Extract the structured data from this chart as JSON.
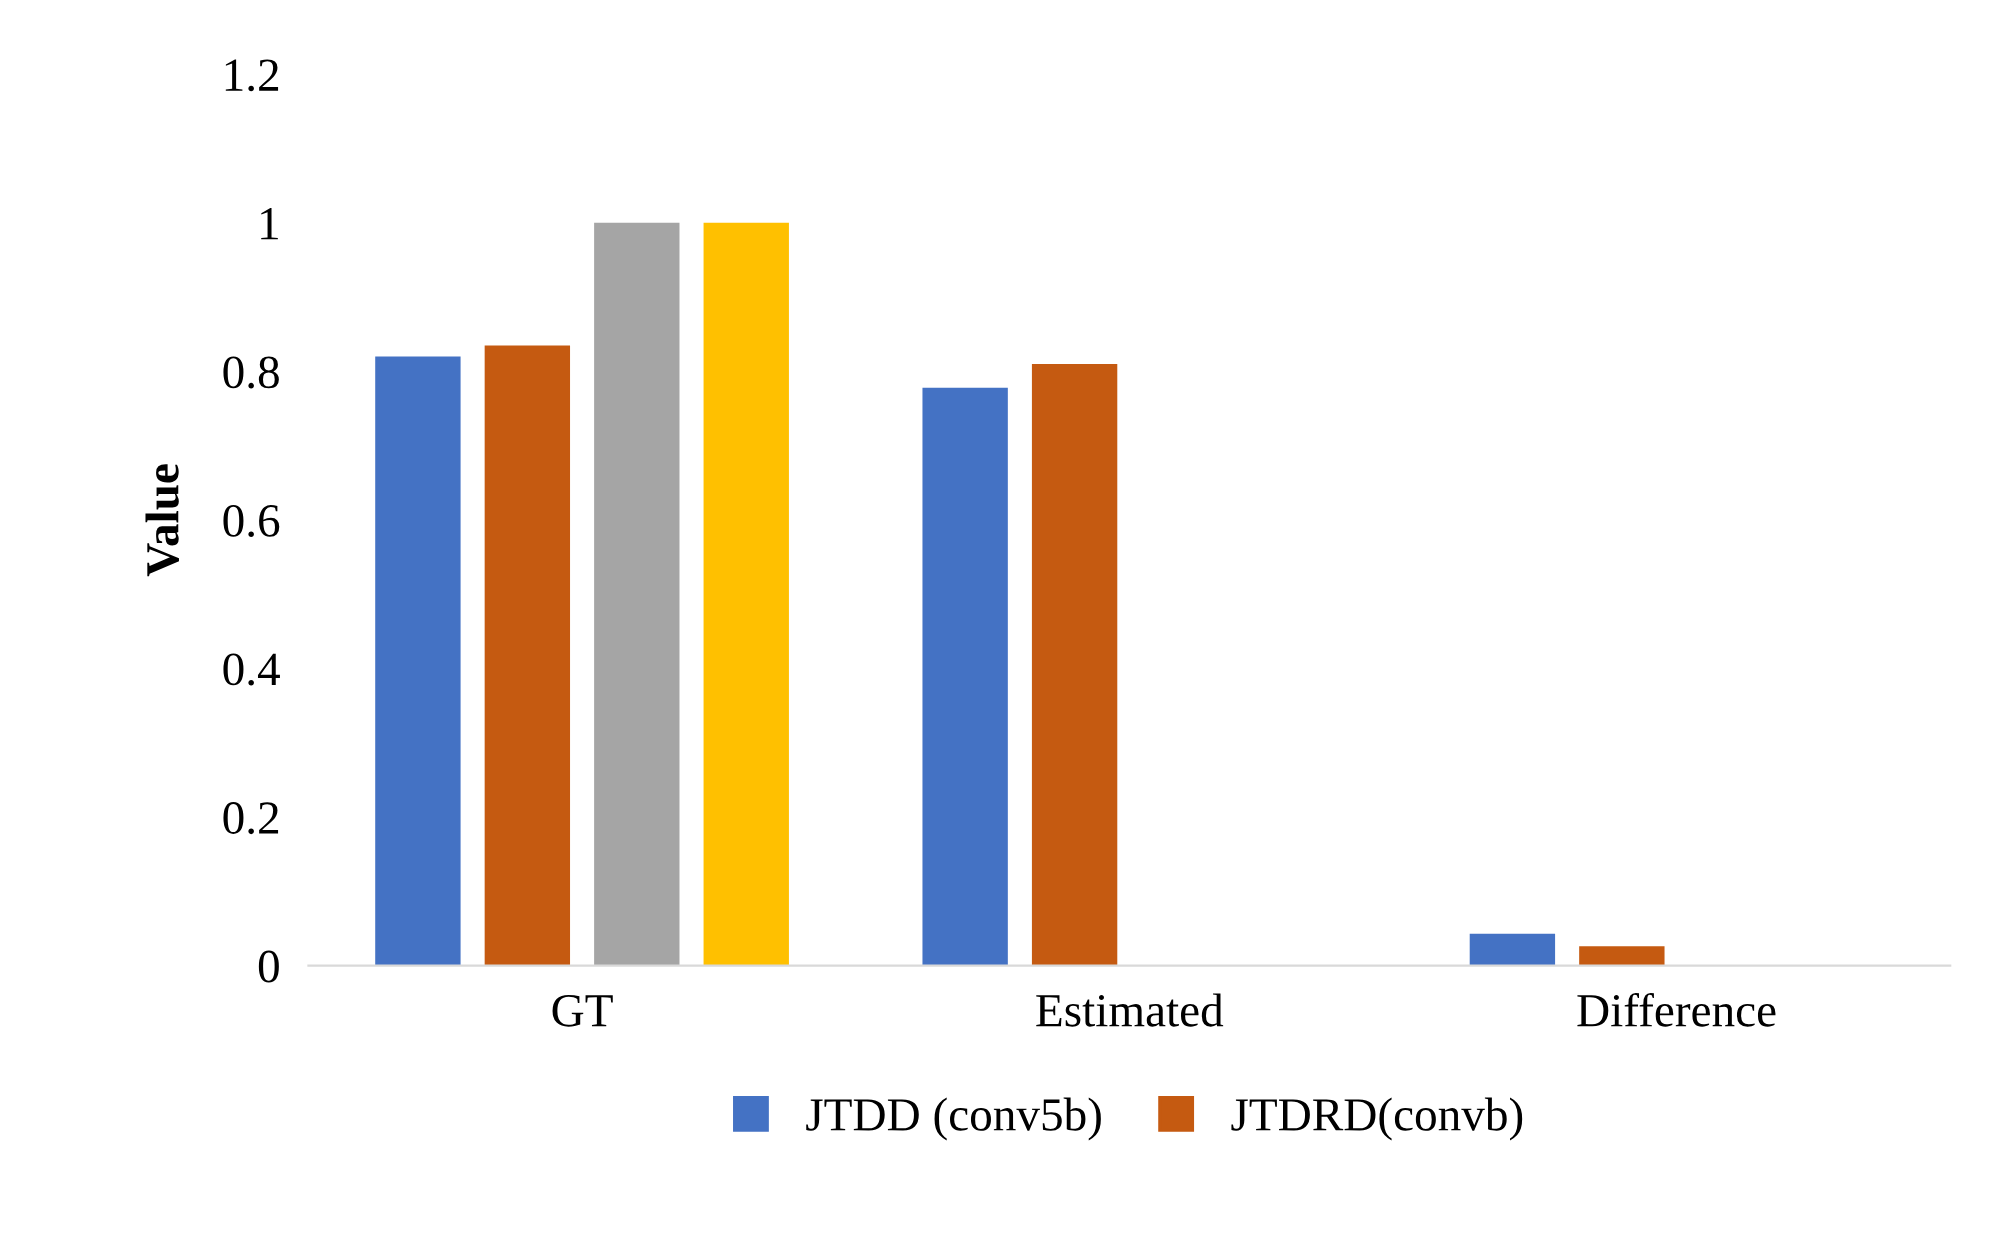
{
  "chart_data": {
    "type": "bar",
    "ylabel": "Value",
    "categories": [
      "GT",
      "Estimated",
      "Difference"
    ],
    "series": [
      {
        "name": "JTDD (conv5b)",
        "color": "#4472c4",
        "values": [
          0.82,
          0.778,
          0.043
        ]
      },
      {
        "name": "JTDRD(convb)",
        "color": "#c55a11",
        "values": [
          0.835,
          0.81,
          0.026
        ]
      },
      {
        "color": "#a5a5a5",
        "values": [
          1.0,
          null,
          null
        ]
      },
      {
        "color": "#ffc000",
        "values": [
          1.0,
          null,
          null
        ]
      }
    ],
    "ylim": [
      0,
      1.2
    ],
    "yticks": [
      0,
      0.2,
      0.4,
      0.6,
      0.8,
      1,
      1.2
    ],
    "grid": false,
    "legend": "bottom"
  }
}
